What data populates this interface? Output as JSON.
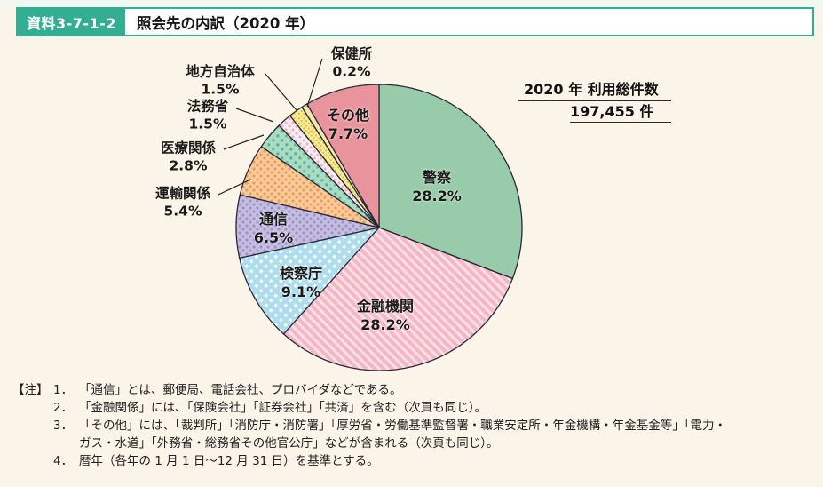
{
  "page": {
    "background": "#fbf4e9",
    "accent_color": "#34ae93"
  },
  "header": {
    "badge": "資料3-7-1-2",
    "title": "照会先の内訳（2020 年）"
  },
  "total": {
    "line1": "2020 年  利用総件数",
    "line2": "197,455 件"
  },
  "chart_data": {
    "type": "pie",
    "title": "照会先の内訳（2020 年）",
    "total_label": "2020 年 利用総件数",
    "total_value": "197,455 件",
    "start": "12-o-clock",
    "direction": "clockwise",
    "outline_color": "#29293a",
    "slices": [
      {
        "label": "警察",
        "value": 28.2,
        "pct": "28.2%",
        "fill": {
          "motif": "solid",
          "base": "#97cba9",
          "accent": "#97cba9"
        }
      },
      {
        "label": "金融機関",
        "value": 28.2,
        "pct": "28.2%",
        "fill": {
          "motif": "stripes",
          "base": "#f3b7c5",
          "accent": "#fbdfe7"
        }
      },
      {
        "label": "検察庁",
        "value": 9.1,
        "pct": "9.1%",
        "fill": {
          "motif": "diamonds",
          "base": "#aedeee",
          "accent": "#ffffff"
        }
      },
      {
        "label": "通信",
        "value": 6.5,
        "pct": "6.5%",
        "fill": {
          "motif": "dots",
          "base": "#c6bfe2",
          "accent": "#9e92c9"
        }
      },
      {
        "label": "運輸関係",
        "value": 5.4,
        "pct": "5.4%",
        "fill": {
          "motif": "dots",
          "base": "#f8cb9d",
          "accent": "#ea9d58"
        }
      },
      {
        "label": "医療関係",
        "value": 2.8,
        "pct": "2.8%",
        "fill": {
          "motif": "squares",
          "base": "#a9dcc5",
          "accent": "#5fae8c"
        }
      },
      {
        "label": "法務省",
        "value": 1.5,
        "pct": "1.5%",
        "fill": {
          "motif": "dots",
          "base": "#fdf0f4",
          "accent": "#efb2c6"
        }
      },
      {
        "label": "地方自治体",
        "value": 1.5,
        "pct": "1.5%",
        "fill": {
          "motif": "fine-dots",
          "base": "#f7ec9f",
          "accent": "#d9c33f"
        }
      },
      {
        "label": "保健所",
        "value": 0.2,
        "pct": "0.2%",
        "fill": {
          "motif": "solid",
          "base": "#f4e6ae",
          "accent": "#f4e6ae"
        }
      },
      {
        "label": "その他",
        "value": 7.7,
        "pct": "7.7%",
        "fill": {
          "motif": "solid",
          "base": "#e9949d",
          "accent": "#e9949d"
        }
      }
    ]
  },
  "notes": {
    "marker": "【注】",
    "items": [
      {
        "num": "1．",
        "text": "「通信」とは、郵便局、電話会社、プロバイダなどである。"
      },
      {
        "num": "2．",
        "text": "「金融関係」には、「保険会社」「証券会社」「共済」を含む（次頁も同じ）。"
      },
      {
        "num": "3．",
        "text": "「その他」には、「裁判所」「消防庁・消防署」「厚労省・労働基準監督署・職業安定所・年金機構・年金基金等」「電力・\nガス・水道」「外務省・総務省その他官公庁」などが含まれる（次頁も同じ）。"
      },
      {
        "num": "4．",
        "text": "暦年（各年の 1 月 1 日～12 月 31 日）を基準とする。"
      }
    ]
  }
}
